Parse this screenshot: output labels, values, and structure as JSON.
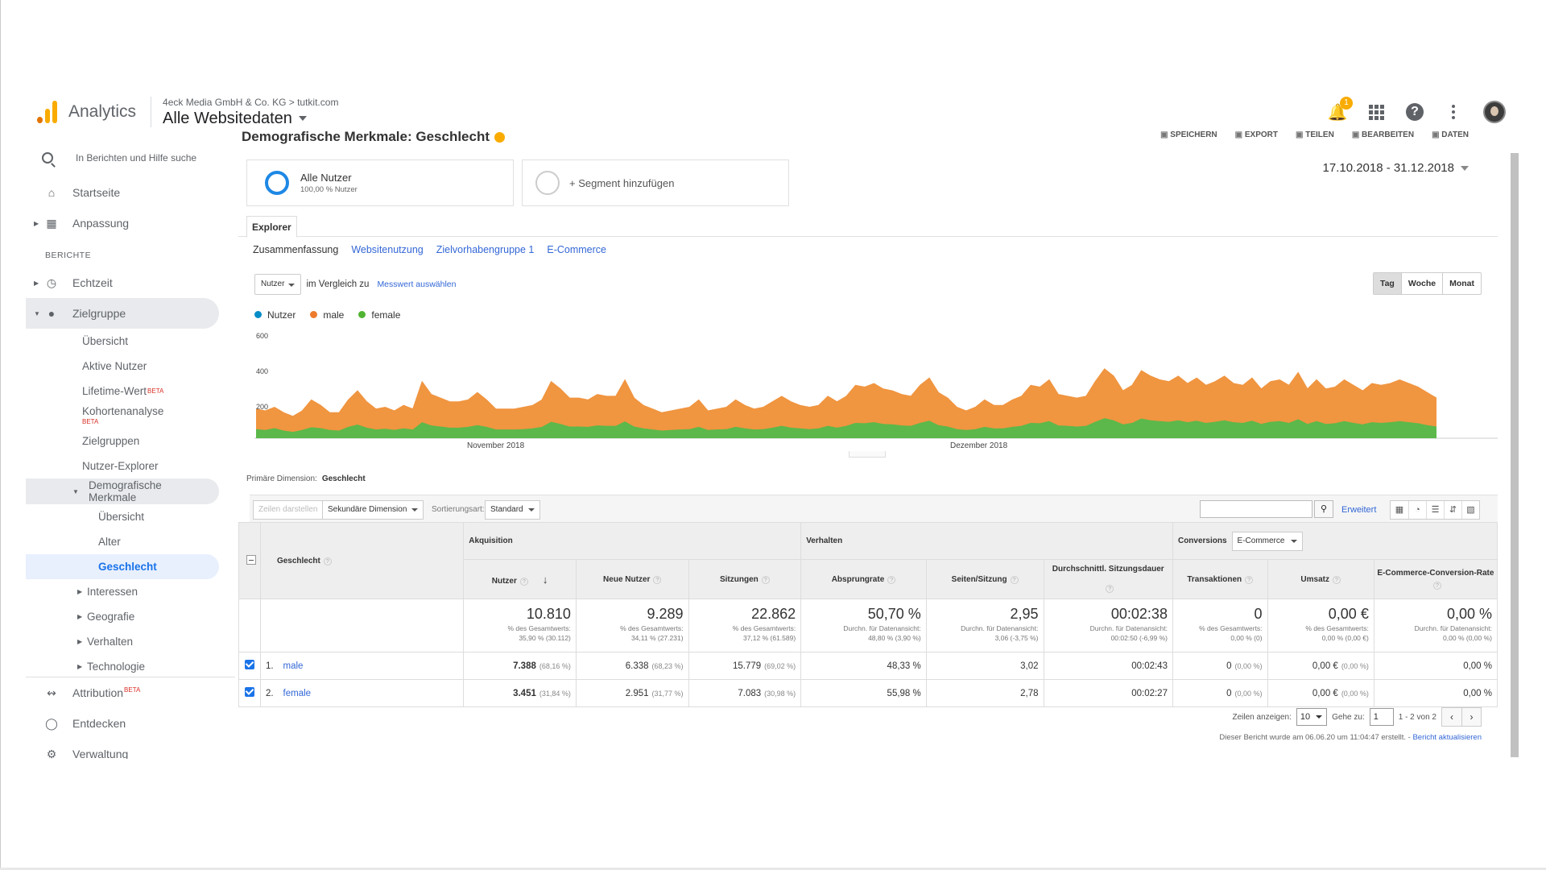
{
  "header": {
    "brand": "Analytics",
    "account_path": "4eck Media GmbH & Co. KG > tutkit.com",
    "view": "Alle Websitedaten",
    "notifications_count": "1"
  },
  "sidebar": {
    "search_placeholder": "In Berichten und Hilfe suche",
    "home": "Startseite",
    "customization": "Anpassung",
    "reports_heading": "BERICHTE",
    "realtime": "Echtzeit",
    "audience": "Zielgruppe",
    "audience_items": [
      "Übersicht",
      "Aktive Nutzer",
      "Lifetime-Wert",
      "Kohortenanalyse",
      "Zielgruppen",
      "Nutzer-Explorer"
    ],
    "beta_label": "BETA",
    "demographics": "Demografische Merkmale",
    "demo_items": [
      "Übersicht",
      "Alter",
      "Geschlecht"
    ],
    "more_items": [
      "Interessen",
      "Geografie",
      "Verhalten",
      "Technologie"
    ],
    "attribution": "Attribution",
    "discover": "Entdecken",
    "admin": "Verwaltung"
  },
  "main": {
    "title": "Demografische Merkmale: Geschlecht",
    "actions": [
      "SPEICHERN",
      "EXPORT",
      "TEILEN",
      "BEARBEITEN",
      "DATEN"
    ],
    "segment_all": "Alle Nutzer",
    "segment_all_pct": "100,00 % Nutzer",
    "segment_add": "+ Segment hinzufügen",
    "date_range": "17.10.2018 - 31.12.2018",
    "tab_explorer": "Explorer",
    "subtabs": [
      "Zusammenfassung",
      "Websitenutzung",
      "Zielvorhabengruppe 1",
      "E-Commerce"
    ],
    "metric_dropdown": "Nutzer",
    "compare_text": "im Vergleich zu",
    "pick_metric": "Messwert auswählen",
    "periods": [
      "Tag",
      "Woche",
      "Monat"
    ],
    "primary_dimension_label": "Primäre Dimension:",
    "primary_dimension_value": "Geschlecht",
    "plot_rows": "Zeilen darstellen",
    "secondary_dimension": "Sekundäre Dimension",
    "sort_label": "Sortierungsart:",
    "sort_value": "Standard",
    "advanced": "Erweitert",
    "rows_label": "Zeilen anzeigen:",
    "rows_value": "10",
    "goto_label": "Gehe zu:",
    "goto_value": "1",
    "range_label": "1 - 2 von 2",
    "footnote": "Dieser Bericht wurde am 06.06.20 um 11:04:47 erstellt. -",
    "footnote_link": "Bericht aktualisieren"
  },
  "table": {
    "dim_header": "Geschlecht",
    "group_acq": "Akquisition",
    "group_beh": "Verhalten",
    "group_conv": "Conversions",
    "conv_dropdown": "E-Commerce",
    "columns": [
      "Nutzer",
      "Neue Nutzer",
      "Sitzungen",
      "Absprungrate",
      "Seiten/Sitzung",
      "Durchschnittl. Sitzungsdauer",
      "Transaktionen",
      "Umsatz",
      "E-Commerce-Conversion-Rate"
    ],
    "totals": [
      {
        "v": "10.810",
        "s1": "% des Gesamtwerts:",
        "s2": "35,90 % (30.112)"
      },
      {
        "v": "9.289",
        "s1": "% des Gesamtwerts:",
        "s2": "34,11 % (27.231)"
      },
      {
        "v": "22.862",
        "s1": "% des Gesamtwerts:",
        "s2": "37,12 % (61.589)"
      },
      {
        "v": "50,70 %",
        "s1": "Durchn. für Datenansicht:",
        "s2": "48,80 % (3,90 %)"
      },
      {
        "v": "2,95",
        "s1": "Durchn. für Datenansicht:",
        "s2": "3,06 (-3,75 %)"
      },
      {
        "v": "00:02:38",
        "s1": "Durchn. für Datenansicht:",
        "s2": "00:02:50 (-6,99 %)"
      },
      {
        "v": "0",
        "s1": "% des Gesamtwerts:",
        "s2": "0,00 % (0)"
      },
      {
        "v": "0,00 €",
        "s1": "% des Gesamtwerts:",
        "s2": "0,00 % (0,00 €)"
      },
      {
        "v": "0,00 %",
        "s1": "Durchn. für Datenansicht:",
        "s2": "0,00 % (0,00 %)"
      }
    ],
    "rows": [
      {
        "num": "1.",
        "name": "male",
        "cells": [
          [
            "7.388",
            "(68,16 %)"
          ],
          [
            "6.338",
            "(68,23 %)"
          ],
          [
            "15.779",
            "(69,02 %)"
          ],
          [
            "48,33 %",
            ""
          ],
          [
            "3,02",
            ""
          ],
          [
            "00:02:43",
            ""
          ],
          [
            "0",
            "(0,00 %)"
          ],
          [
            "0,00 €",
            "(0,00 %)"
          ],
          [
            "0,00 %",
            ""
          ]
        ]
      },
      {
        "num": "2.",
        "name": "female",
        "cells": [
          [
            "3.451",
            "(31,84 %)"
          ],
          [
            "2.951",
            "(31,77 %)"
          ],
          [
            "7.083",
            "(30,98 %)"
          ],
          [
            "55,98 %",
            ""
          ],
          [
            "2,78",
            ""
          ],
          [
            "00:02:27",
            ""
          ],
          [
            "0",
            "(0,00 %)"
          ],
          [
            "0,00 €",
            "(0,00 %)"
          ],
          [
            "0,00 %",
            ""
          ]
        ]
      }
    ]
  },
  "colors": {
    "nutzer": "#058dc7",
    "male": "#ed7b2c",
    "female": "#50b432",
    "male_fill": "#f09540",
    "female_fill": "#5cb84a"
  },
  "chart_data": {
    "type": "area",
    "series_names": [
      "Nutzer",
      "male",
      "female"
    ],
    "y_ticks": [
      "600",
      "400",
      "200"
    ],
    "ylim": [
      0,
      600
    ],
    "x_labels": [
      "November 2018",
      "Dezember 2018"
    ],
    "total": [
      160,
      150,
      170,
      140,
      120,
      150,
      210,
      180,
      140,
      140,
      210,
      260,
      200,
      160,
      170,
      150,
      180,
      160,
      310,
      240,
      220,
      200,
      200,
      210,
      250,
      210,
      160,
      160,
      160,
      170,
      180,
      210,
      310,
      270,
      220,
      220,
      210,
      240,
      230,
      230,
      320,
      220,
      180,
      160,
      140,
      150,
      160,
      170,
      210,
      150,
      160,
      170,
      210,
      180,
      160,
      170,
      200,
      230,
      200,
      180,
      170,
      180,
      230,
      200,
      230,
      290,
      280,
      300,
      270,
      260,
      240,
      230,
      290,
      330,
      250,
      220,
      170,
      150,
      170,
      210,
      180,
      180,
      210,
      230,
      290,
      280,
      320,
      240,
      230,
      220,
      230,
      310,
      380,
      340,
      260,
      290,
      370,
      340,
      320,
      310,
      340,
      300,
      330,
      290,
      310,
      340,
      300,
      290,
      330,
      270,
      310,
      320,
      290,
      360,
      270,
      320,
      270,
      280,
      320,
      290,
      260,
      300,
      290,
      300,
      320,
      300,
      280,
      250,
      220
    ],
    "female": [
      50,
      45,
      55,
      42,
      35,
      45,
      60,
      55,
      45,
      42,
      62,
      75,
      58,
      48,
      52,
      46,
      54,
      48,
      88,
      70,
      64,
      58,
      58,
      62,
      72,
      62,
      48,
      48,
      48,
      50,
      54,
      62,
      90,
      78,
      64,
      64,
      62,
      70,
      68,
      68,
      92,
      64,
      54,
      48,
      42,
      45,
      48,
      50,
      62,
      45,
      48,
      50,
      62,
      54,
      48,
      50,
      58,
      68,
      58,
      54,
      50,
      54,
      68,
      58,
      68,
      84,
      82,
      88,
      78,
      76,
      70,
      68,
      84,
      96,
      72,
      64,
      50,
      45,
      50,
      62,
      54,
      54,
      62,
      68,
      84,
      82,
      94,
      70,
      68,
      64,
      68,
      90,
      110,
      98,
      76,
      84,
      108,
      98,
      94,
      90,
      98,
      88,
      96,
      84,
      90,
      98,
      88,
      84,
      96,
      78,
      90,
      94,
      84,
      104,
      78,
      94,
      78,
      82,
      94,
      84,
      76,
      88,
      84,
      88,
      94,
      88,
      82,
      72,
      64
    ]
  }
}
